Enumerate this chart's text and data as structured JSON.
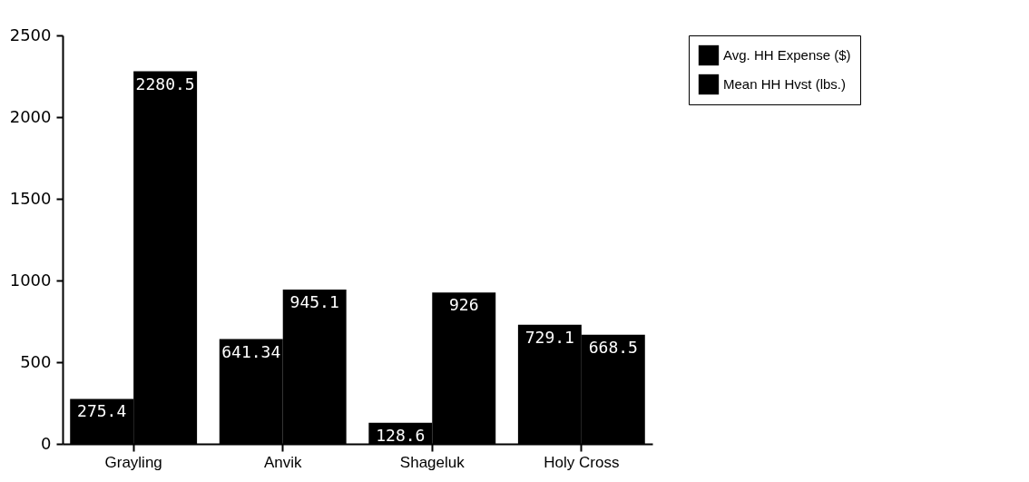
{
  "chart_data": {
    "type": "bar",
    "categories": [
      "Grayling",
      "Anvik",
      "Shageluk",
      "Holy Cross"
    ],
    "series": [
      {
        "name": "Avg. HH Expense ($)",
        "color": "#000000",
        "values": [
          275.4,
          641.34,
          128.6,
          729.1
        ]
      },
      {
        "name": "Mean HH Hvst (lbs.)",
        "color": "#000000",
        "values": [
          2280.5,
          945.1,
          926,
          668.5
        ]
      }
    ],
    "ylim": [
      0,
      2500
    ],
    "yticks": [
      0,
      500,
      1000,
      1500,
      2000,
      2500
    ],
    "grid": false,
    "legend": "top right",
    "data_labels": true
  }
}
